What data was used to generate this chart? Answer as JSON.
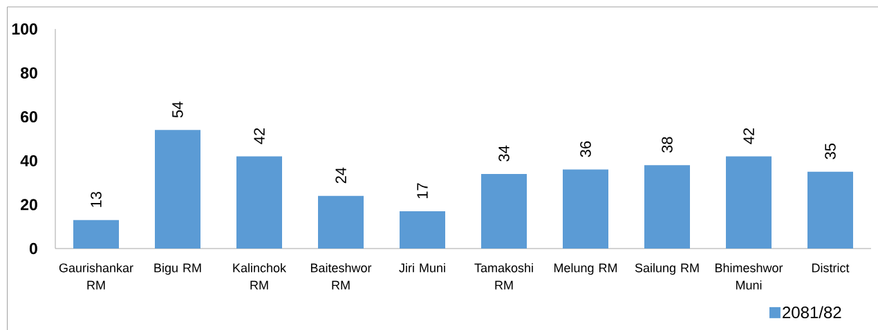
{
  "chart_data": {
    "type": "bar",
    "categories": [
      "Gaurishankar RM",
      "Bigu RM",
      "Kalinchok RM",
      "Baiteshwor RM",
      "Jiri Muni",
      "Tamakoshi RM",
      "Melung RM",
      "Sailung RM",
      "Bhimeshwor Muni",
      "District"
    ],
    "series": [
      {
        "name": "2081/82",
        "color": "#5b9bd5",
        "values": [
          13,
          54,
          42,
          24,
          17,
          34,
          36,
          38,
          42,
          35
        ]
      }
    ],
    "ylim": [
      0,
      100
    ],
    "yticks": [
      0,
      20,
      40,
      60,
      80,
      100
    ],
    "data_labels": true,
    "legend": "bottom right"
  }
}
